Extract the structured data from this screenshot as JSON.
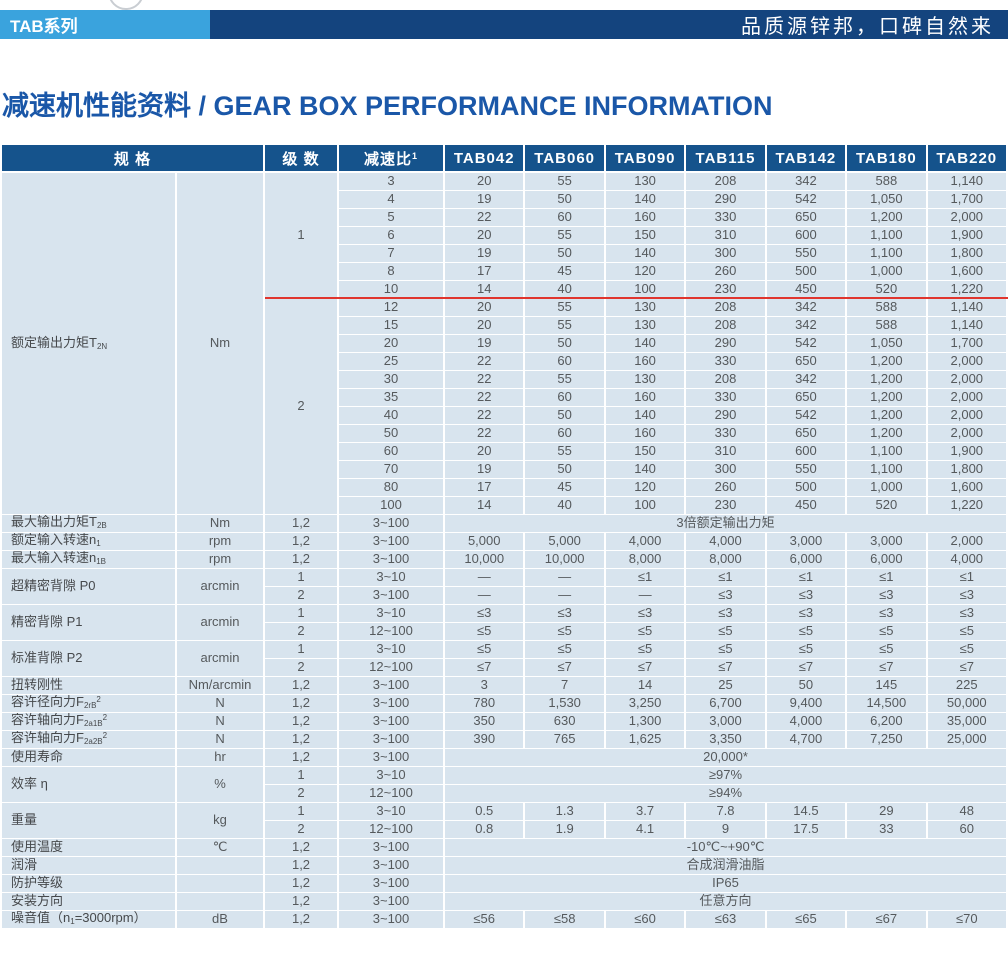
{
  "topbar": {
    "series": "TAB系列",
    "slogan": "品质源锌邦，口碑自然来"
  },
  "title": "减速机性能资料 / GEAR BOX PERFORMANCE INFORMATION",
  "colors": {
    "accent_light": "#3aa3dd",
    "accent_navy": "#14447e",
    "header_bg": "#15538c",
    "cell_bg": "#d8e4ee",
    "title_blue": "#1a57a8",
    "red_line": "#e0352e"
  },
  "table": {
    "header": [
      {
        "t": "规 格",
        "cs": 2
      },
      {
        "t": "级 数"
      },
      {
        "parts": [
          {
            "t": "减速比"
          },
          {
            "sup": "1"
          }
        ]
      },
      {
        "t": "TAB042"
      },
      {
        "t": "TAB060"
      },
      {
        "t": "TAB090"
      },
      {
        "t": "TAB115"
      },
      {
        "t": "TAB142"
      },
      {
        "t": "TAB180"
      },
      {
        "t": "TAB220"
      }
    ],
    "rows": [
      [
        {
          "parts": [
            {
              "t": "额定输出力矩T"
            },
            {
              "sub": "2N"
            }
          ],
          "rs": 19,
          "al": "l"
        },
        {
          "t": "Nm",
          "rs": 19
        },
        {
          "t": "1",
          "rs": 7,
          "rb": 1
        },
        {
          "t": "3"
        },
        {
          "t": "20"
        },
        {
          "t": "55"
        },
        {
          "t": "130"
        },
        {
          "t": "208"
        },
        {
          "t": "342"
        },
        {
          "t": "588"
        },
        {
          "t": "1,140"
        }
      ],
      [
        {
          "t": "4"
        },
        {
          "t": "19"
        },
        {
          "t": "50"
        },
        {
          "t": "140"
        },
        {
          "t": "290"
        },
        {
          "t": "542"
        },
        {
          "t": "1,050"
        },
        {
          "t": "1,700"
        }
      ],
      [
        {
          "t": "5"
        },
        {
          "t": "22"
        },
        {
          "t": "60"
        },
        {
          "t": "160"
        },
        {
          "t": "330"
        },
        {
          "t": "650"
        },
        {
          "t": "1,200"
        },
        {
          "t": "2,000"
        }
      ],
      [
        {
          "t": "6"
        },
        {
          "t": "20"
        },
        {
          "t": "55"
        },
        {
          "t": "150"
        },
        {
          "t": "310"
        },
        {
          "t": "600"
        },
        {
          "t": "1,100"
        },
        {
          "t": "1,900"
        }
      ],
      [
        {
          "t": "7"
        },
        {
          "t": "19"
        },
        {
          "t": "50"
        },
        {
          "t": "140"
        },
        {
          "t": "300"
        },
        {
          "t": "550"
        },
        {
          "t": "1,100"
        },
        {
          "t": "1,800"
        }
      ],
      [
        {
          "t": "8"
        },
        {
          "t": "17"
        },
        {
          "t": "45"
        },
        {
          "t": "120"
        },
        {
          "t": "260"
        },
        {
          "t": "500"
        },
        {
          "t": "1,000"
        },
        {
          "t": "1,600"
        }
      ],
      [
        {
          "t": "10",
          "rb": 1
        },
        {
          "t": "14",
          "rb": 1
        },
        {
          "t": "40",
          "rb": 1
        },
        {
          "t": "100",
          "rb": 1
        },
        {
          "t": "230",
          "rb": 1
        },
        {
          "t": "450",
          "rb": 1
        },
        {
          "t": "520",
          "rb": 1
        },
        {
          "t": "1,220",
          "rb": 1
        }
      ],
      [
        {
          "t": "2",
          "rs": 12
        },
        {
          "t": "12"
        },
        {
          "t": "20"
        },
        {
          "t": "55"
        },
        {
          "t": "130"
        },
        {
          "t": "208"
        },
        {
          "t": "342"
        },
        {
          "t": "588"
        },
        {
          "t": "1,140"
        }
      ],
      [
        {
          "t": "15"
        },
        {
          "t": "20"
        },
        {
          "t": "55"
        },
        {
          "t": "130"
        },
        {
          "t": "208"
        },
        {
          "t": "342"
        },
        {
          "t": "588"
        },
        {
          "t": "1,140"
        }
      ],
      [
        {
          "t": "20"
        },
        {
          "t": "19"
        },
        {
          "t": "50"
        },
        {
          "t": "140"
        },
        {
          "t": "290"
        },
        {
          "t": "542"
        },
        {
          "t": "1,050"
        },
        {
          "t": "1,700"
        }
      ],
      [
        {
          "t": "25"
        },
        {
          "t": "22"
        },
        {
          "t": "60"
        },
        {
          "t": "160"
        },
        {
          "t": "330"
        },
        {
          "t": "650"
        },
        {
          "t": "1,200"
        },
        {
          "t": "2,000"
        }
      ],
      [
        {
          "t": "30"
        },
        {
          "t": "22"
        },
        {
          "t": "55"
        },
        {
          "t": "130"
        },
        {
          "t": "208"
        },
        {
          "t": "342"
        },
        {
          "t": "1,200"
        },
        {
          "t": "2,000"
        }
      ],
      [
        {
          "t": "35"
        },
        {
          "t": "22"
        },
        {
          "t": "60"
        },
        {
          "t": "160"
        },
        {
          "t": "330"
        },
        {
          "t": "650"
        },
        {
          "t": "1,200"
        },
        {
          "t": "2,000"
        }
      ],
      [
        {
          "t": "40"
        },
        {
          "t": "22"
        },
        {
          "t": "50"
        },
        {
          "t": "140"
        },
        {
          "t": "290"
        },
        {
          "t": "542"
        },
        {
          "t": "1,200"
        },
        {
          "t": "2,000"
        }
      ],
      [
        {
          "t": "50"
        },
        {
          "t": "22"
        },
        {
          "t": "60"
        },
        {
          "t": "160"
        },
        {
          "t": "330"
        },
        {
          "t": "650"
        },
        {
          "t": "1,200"
        },
        {
          "t": "2,000"
        }
      ],
      [
        {
          "t": "60"
        },
        {
          "t": "20"
        },
        {
          "t": "55"
        },
        {
          "t": "150"
        },
        {
          "t": "310"
        },
        {
          "t": "600"
        },
        {
          "t": "1,100"
        },
        {
          "t": "1,900"
        }
      ],
      [
        {
          "t": "70"
        },
        {
          "t": "19"
        },
        {
          "t": "50"
        },
        {
          "t": "140"
        },
        {
          "t": "300"
        },
        {
          "t": "550"
        },
        {
          "t": "1,100"
        },
        {
          "t": "1,800"
        }
      ],
      [
        {
          "t": "80"
        },
        {
          "t": "17"
        },
        {
          "t": "45"
        },
        {
          "t": "120"
        },
        {
          "t": "260"
        },
        {
          "t": "500"
        },
        {
          "t": "1,000"
        },
        {
          "t": "1,600"
        }
      ],
      [
        {
          "t": "100"
        },
        {
          "t": "14"
        },
        {
          "t": "40"
        },
        {
          "t": "100"
        },
        {
          "t": "230"
        },
        {
          "t": "450"
        },
        {
          "t": "520"
        },
        {
          "t": "1,220"
        }
      ],
      [
        {
          "parts": [
            {
              "t": "最大输出力矩T"
            },
            {
              "sub": "2B"
            }
          ],
          "al": "l"
        },
        {
          "t": "Nm"
        },
        {
          "t": "1,2"
        },
        {
          "t": "3~100"
        },
        {
          "t": "3倍额定输出力矩",
          "cs": 7
        }
      ],
      [
        {
          "parts": [
            {
              "t": "额定输入转速n"
            },
            {
              "sub": "1"
            }
          ],
          "al": "l"
        },
        {
          "t": "rpm"
        },
        {
          "t": "1,2"
        },
        {
          "t": "3~100"
        },
        {
          "t": "5,000"
        },
        {
          "t": "5,000"
        },
        {
          "t": "4,000"
        },
        {
          "t": "4,000"
        },
        {
          "t": "3,000"
        },
        {
          "t": "3,000"
        },
        {
          "t": "2,000"
        }
      ],
      [
        {
          "parts": [
            {
              "t": "最大输入转速n"
            },
            {
              "sub": "1B"
            }
          ],
          "al": "l"
        },
        {
          "t": "rpm"
        },
        {
          "t": "1,2"
        },
        {
          "t": "3~100"
        },
        {
          "t": "10,000"
        },
        {
          "t": "10,000"
        },
        {
          "t": "8,000"
        },
        {
          "t": "8,000"
        },
        {
          "t": "6,000"
        },
        {
          "t": "6,000"
        },
        {
          "t": "4,000"
        }
      ],
      [
        {
          "t": "超精密背隙 P0",
          "rs": 2,
          "al": "l"
        },
        {
          "t": "arcmin",
          "rs": 2
        },
        {
          "t": "1"
        },
        {
          "t": "3~10"
        },
        {
          "t": "—"
        },
        {
          "t": "—"
        },
        {
          "t": "≤1"
        },
        {
          "t": "≤1"
        },
        {
          "t": "≤1"
        },
        {
          "t": "≤1"
        },
        {
          "t": "≤1"
        }
      ],
      [
        {
          "t": "2"
        },
        {
          "t": "3~100"
        },
        {
          "t": "—"
        },
        {
          "t": "—"
        },
        {
          "t": "—"
        },
        {
          "t": "≤3"
        },
        {
          "t": "≤3"
        },
        {
          "t": "≤3"
        },
        {
          "t": "≤3"
        }
      ],
      [
        {
          "t": "精密背隙 P1",
          "rs": 2,
          "al": "l"
        },
        {
          "t": "arcmin",
          "rs": 2
        },
        {
          "t": "1"
        },
        {
          "t": "3~10"
        },
        {
          "t": "≤3"
        },
        {
          "t": "≤3"
        },
        {
          "t": "≤3"
        },
        {
          "t": "≤3"
        },
        {
          "t": "≤3"
        },
        {
          "t": "≤3"
        },
        {
          "t": "≤3"
        }
      ],
      [
        {
          "t": "2"
        },
        {
          "t": "12~100"
        },
        {
          "t": "≤5"
        },
        {
          "t": "≤5"
        },
        {
          "t": "≤5"
        },
        {
          "t": "≤5"
        },
        {
          "t": "≤5"
        },
        {
          "t": "≤5"
        },
        {
          "t": "≤5"
        }
      ],
      [
        {
          "t": "标准背隙 P2",
          "rs": 2,
          "al": "l"
        },
        {
          "t": "arcmin",
          "rs": 2
        },
        {
          "t": "1"
        },
        {
          "t": "3~10"
        },
        {
          "t": "≤5"
        },
        {
          "t": "≤5"
        },
        {
          "t": "≤5"
        },
        {
          "t": "≤5"
        },
        {
          "t": "≤5"
        },
        {
          "t": "≤5"
        },
        {
          "t": "≤5"
        }
      ],
      [
        {
          "t": "2"
        },
        {
          "t": "12~100"
        },
        {
          "t": "≤7"
        },
        {
          "t": "≤7"
        },
        {
          "t": "≤7"
        },
        {
          "t": "≤7"
        },
        {
          "t": "≤7"
        },
        {
          "t": "≤7"
        },
        {
          "t": "≤7"
        }
      ],
      [
        {
          "t": "扭转刚性",
          "al": "l"
        },
        {
          "t": "Nm/arcmin"
        },
        {
          "t": "1,2"
        },
        {
          "t": "3~100"
        },
        {
          "t": "3"
        },
        {
          "t": "7"
        },
        {
          "t": "14"
        },
        {
          "t": "25"
        },
        {
          "t": "50"
        },
        {
          "t": "145"
        },
        {
          "t": "225"
        }
      ],
      [
        {
          "parts": [
            {
              "t": "容许径向力F"
            },
            {
              "sub": "2rB"
            },
            {
              "sup": "2"
            }
          ],
          "al": "l"
        },
        {
          "t": "N"
        },
        {
          "t": "1,2"
        },
        {
          "t": "3~100"
        },
        {
          "t": "780"
        },
        {
          "t": "1,530"
        },
        {
          "t": "3,250"
        },
        {
          "t": "6,700"
        },
        {
          "t": "9,400"
        },
        {
          "t": "14,500"
        },
        {
          "t": "50,000"
        }
      ],
      [
        {
          "parts": [
            {
              "t": "容许轴向力F"
            },
            {
              "sub": "2a1B"
            },
            {
              "sup": "2"
            }
          ],
          "al": "l"
        },
        {
          "t": "N"
        },
        {
          "t": "1,2"
        },
        {
          "t": "3~100"
        },
        {
          "t": "350"
        },
        {
          "t": "630"
        },
        {
          "t": "1,300"
        },
        {
          "t": "3,000"
        },
        {
          "t": "4,000"
        },
        {
          "t": "6,200"
        },
        {
          "t": "35,000"
        }
      ],
      [
        {
          "parts": [
            {
              "t": "容许轴向力F"
            },
            {
              "sub": "2a2B"
            },
            {
              "sup": "2"
            }
          ],
          "al": "l"
        },
        {
          "t": "N"
        },
        {
          "t": "1,2"
        },
        {
          "t": "3~100"
        },
        {
          "t": "390"
        },
        {
          "t": "765"
        },
        {
          "t": "1,625"
        },
        {
          "t": "3,350"
        },
        {
          "t": "4,700"
        },
        {
          "t": "7,250"
        },
        {
          "t": "25,000"
        }
      ],
      [
        {
          "t": "使用寿命",
          "al": "l"
        },
        {
          "t": "hr"
        },
        {
          "t": "1,2"
        },
        {
          "t": "3~100"
        },
        {
          "t": "20,000*",
          "cs": 7
        }
      ],
      [
        {
          "t": "效率 η",
          "rs": 2,
          "al": "l"
        },
        {
          "t": "%",
          "rs": 2
        },
        {
          "t": "1"
        },
        {
          "t": "3~10"
        },
        {
          "t": "≥97%",
          "cs": 7
        }
      ],
      [
        {
          "t": "2"
        },
        {
          "t": "12~100"
        },
        {
          "t": "≥94%",
          "cs": 7
        }
      ],
      [
        {
          "t": "重量",
          "rs": 2,
          "al": "l"
        },
        {
          "t": "kg",
          "rs": 2
        },
        {
          "t": "1"
        },
        {
          "t": "3~10"
        },
        {
          "t": "0.5"
        },
        {
          "t": "1.3"
        },
        {
          "t": "3.7"
        },
        {
          "t": "7.8"
        },
        {
          "t": "14.5"
        },
        {
          "t": "29"
        },
        {
          "t": "48"
        }
      ],
      [
        {
          "t": "2"
        },
        {
          "t": "12~100"
        },
        {
          "t": "0.8"
        },
        {
          "t": "1.9"
        },
        {
          "t": "4.1"
        },
        {
          "t": "9"
        },
        {
          "t": "17.5"
        },
        {
          "t": "33"
        },
        {
          "t": "60"
        }
      ],
      [
        {
          "t": "使用温度",
          "al": "l"
        },
        {
          "t": "℃"
        },
        {
          "t": "1,2"
        },
        {
          "t": "3~100"
        },
        {
          "t": "-10℃~+90℃",
          "cs": 7
        }
      ],
      [
        {
          "t": "润滑",
          "al": "l"
        },
        {
          "t": ""
        },
        {
          "t": "1,2"
        },
        {
          "t": "3~100"
        },
        {
          "t": "合成润滑油脂",
          "cs": 7
        }
      ],
      [
        {
          "t": "防护等级",
          "al": "l"
        },
        {
          "t": ""
        },
        {
          "t": "1,2"
        },
        {
          "t": "3~100"
        },
        {
          "t": "IP65",
          "cs": 7
        }
      ],
      [
        {
          "t": "安装方向",
          "al": "l"
        },
        {
          "t": ""
        },
        {
          "t": "1,2"
        },
        {
          "t": "3~100"
        },
        {
          "t": "任意方向",
          "cs": 7
        }
      ],
      [
        {
          "parts": [
            {
              "t": "噪音值（n"
            },
            {
              "sub": "1"
            },
            {
              "t": "=3000rpm）"
            }
          ],
          "al": "l"
        },
        {
          "t": "dB"
        },
        {
          "t": "1,2"
        },
        {
          "t": "3~100"
        },
        {
          "t": "≤56"
        },
        {
          "t": "≤58"
        },
        {
          "t": "≤60"
        },
        {
          "t": "≤63"
        },
        {
          "t": "≤65"
        },
        {
          "t": "≤67"
        },
        {
          "t": "≤70"
        }
      ]
    ]
  }
}
